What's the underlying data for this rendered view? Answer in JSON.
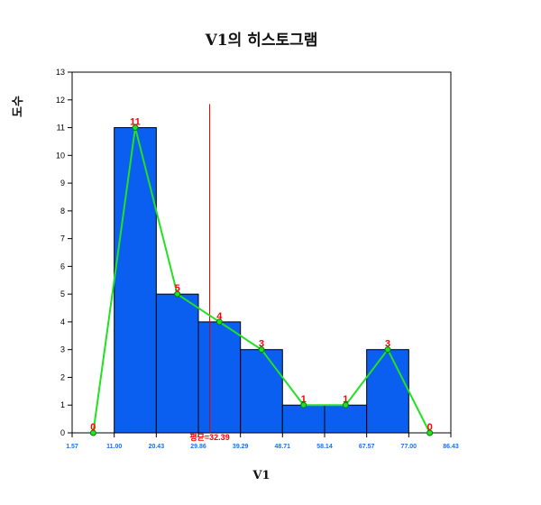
{
  "chart_data": {
    "type": "bar",
    "title": "V1의 히스토그램",
    "xlabel": "V1",
    "ylabel": "도수",
    "ylim": [
      0,
      13
    ],
    "yticks": [
      "0",
      "1",
      "2",
      "3",
      "4",
      "5",
      "6",
      "7",
      "8",
      "9",
      "10",
      "11",
      "12",
      "13"
    ],
    "bin_edges": [
      1.57,
      11.0,
      20.43,
      29.86,
      39.29,
      48.71,
      58.14,
      67.57,
      77.0,
      86.43
    ],
    "xtick_labels": [
      "1.57",
      "11.00",
      "20.43",
      "29.86",
      "39.29",
      "48.71",
      "58.14",
      "67.57",
      "77.00",
      "86.43"
    ],
    "bars": [
      {
        "from": 11.0,
        "to": 20.43,
        "count": 11
      },
      {
        "from": 20.43,
        "to": 29.86,
        "count": 5
      },
      {
        "from": 29.86,
        "to": 39.29,
        "count": 4
      },
      {
        "from": 39.29,
        "to": 48.71,
        "count": 3
      },
      {
        "from": 48.71,
        "to": 58.14,
        "count": 1
      },
      {
        "from": 58.14,
        "to": 67.57,
        "count": 1
      },
      {
        "from": 67.57,
        "to": 77.0,
        "count": 3
      }
    ],
    "polygon": {
      "x": [
        6.29,
        15.71,
        25.14,
        34.57,
        44.0,
        53.43,
        62.86,
        72.29,
        81.71
      ],
      "values": [
        0,
        11,
        5,
        4,
        3,
        1,
        1,
        3,
        0
      ],
      "labels": [
        "0",
        "11",
        "5",
        "4",
        "3",
        "1",
        "1",
        "3",
        "0"
      ]
    },
    "mean": {
      "value": 32.39,
      "label": "평균=32.39"
    },
    "colors": {
      "bar_fill": "#0a5ef0",
      "bar_stroke": "#000000",
      "polygon_line": "#22e022",
      "mean_line": "#e00000",
      "count_label": "#ff0000",
      "xtick": "#1e6ee8"
    }
  }
}
